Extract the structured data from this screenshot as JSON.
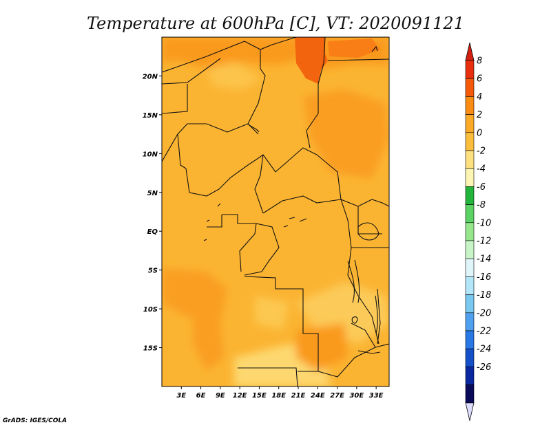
{
  "title": "Temperature at 600hPa [C], VT: 2020091121",
  "credit": "GrADS: IGES/COLA",
  "map": {
    "extent": {
      "lon": [
        0,
        35
      ],
      "lat": [
        -20,
        25
      ]
    },
    "lat_ticks": [
      {
        "value": 20,
        "label": "20N"
      },
      {
        "value": 15,
        "label": "15N"
      },
      {
        "value": 10,
        "label": "10N"
      },
      {
        "value": 5,
        "label": "5N"
      },
      {
        "value": 0,
        "label": "EQ"
      },
      {
        "value": -5,
        "label": "5S"
      },
      {
        "value": -10,
        "label": "10S"
      },
      {
        "value": -15,
        "label": "15S"
      }
    ],
    "lon_ticks": [
      {
        "value": 3,
        "label": "3E"
      },
      {
        "value": 6,
        "label": "6E"
      },
      {
        "value": 9,
        "label": "9E"
      },
      {
        "value": 12,
        "label": "12E"
      },
      {
        "value": 15,
        "label": "15E"
      },
      {
        "value": 18,
        "label": "18E"
      },
      {
        "value": 21,
        "label": "21E"
      },
      {
        "value": 24,
        "label": "24E"
      },
      {
        "value": 27,
        "label": "27E"
      },
      {
        "value": 30,
        "label": "30E"
      },
      {
        "value": 33,
        "label": "33E"
      }
    ]
  },
  "colorbar": {
    "max_arrow_color": "#d42010",
    "min_arrow_color": "#dcdcff",
    "bins": [
      {
        "label": "8",
        "color": "#e83010"
      },
      {
        "label": "6",
        "color": "#f55a0a"
      },
      {
        "label": "4",
        "color": "#fa8c14"
      },
      {
        "label": "2",
        "color": "#fbaa28"
      },
      {
        "label": "0",
        "color": "#fbbe3c"
      },
      {
        "label": "-2",
        "color": "#fde080"
      },
      {
        "label": "-4",
        "color": "#fdf5b4"
      },
      {
        "label": "-6",
        "color": "#23b43c"
      },
      {
        "label": "-8",
        "color": "#5ad264"
      },
      {
        "label": "-10",
        "color": "#96e68c"
      },
      {
        "label": "-12",
        "color": "#c8f5c8"
      },
      {
        "label": "-14",
        "color": "#e0f5fa"
      },
      {
        "label": "-16",
        "color": "#b4e6fa"
      },
      {
        "label": "-18",
        "color": "#78c8f0"
      },
      {
        "label": "-20",
        "color": "#50a0f0"
      },
      {
        "label": "-22",
        "color": "#2878e6"
      },
      {
        "label": "-24",
        "color": "#1450c8"
      },
      {
        "label": "-26",
        "color": "#0a28a0"
      },
      {
        "label": "",
        "color": "#0a0a5a"
      }
    ]
  }
}
